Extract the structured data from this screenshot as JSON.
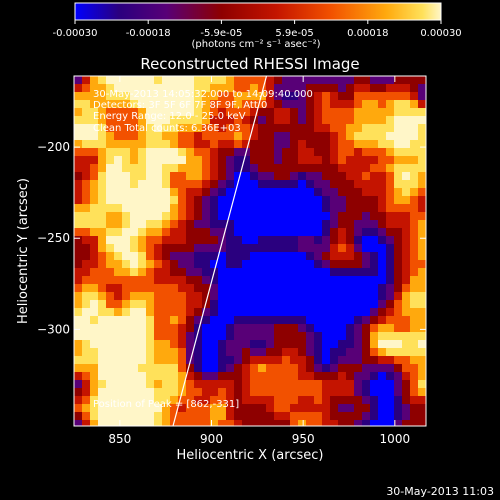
{
  "colors": {
    "background": "#000000",
    "text": "#ffffff",
    "colormap": [
      "#0000ff",
      "#2a007f",
      "#580077",
      "#8e0000",
      "#c41400",
      "#f25100",
      "#ffa90d",
      "#ffe15a",
      "#fff6c8"
    ]
  },
  "colorbar": {
    "range": [
      -0.0003,
      0.0003
    ],
    "tick_labels": [
      "-0.00030",
      "-0.00018",
      "-5.9e-05",
      "5.9e-05",
      "0.00018",
      "0.00030"
    ],
    "units_label": "(photons cm⁻² s⁻¹ asec⁻²)"
  },
  "chart_data": {
    "type": "heatmap",
    "title": "Reconstructed RHESSI Image",
    "xlabel": "Heliocentric X (arcsec)",
    "ylabel": "Heliocentric Y (arcsec)",
    "xlim": [
      825,
      1017
    ],
    "ylim": [
      -353,
      -161
    ],
    "x_ticks": [
      850,
      900,
      950,
      1000
    ],
    "x_tick_labels": [
      "850",
      "900",
      "950",
      "1000"
    ],
    "y_ticks": [
      -200,
      -250,
      -300
    ],
    "y_tick_labels": [
      "−200",
      "−250",
      "−300"
    ],
    "annotations": [
      "30-May-2013 14:05:32.000 to 14:09:40.000",
      "Detectors: 3F 5F 6F 7F 8F 9F, Att 0",
      "Energy Range: 12.0 - 25.0 keV",
      "Clean    Total counts: 6.36E+03"
    ],
    "peak_label": "Position of Peak = [862,-331]",
    "peak_position": [
      862,
      -331
    ],
    "limb_line": [
      [
        879,
        -353
      ],
      [
        930,
        -161
      ]
    ]
  },
  "footer": {
    "timestamp": "30-May-2013 11:03"
  }
}
